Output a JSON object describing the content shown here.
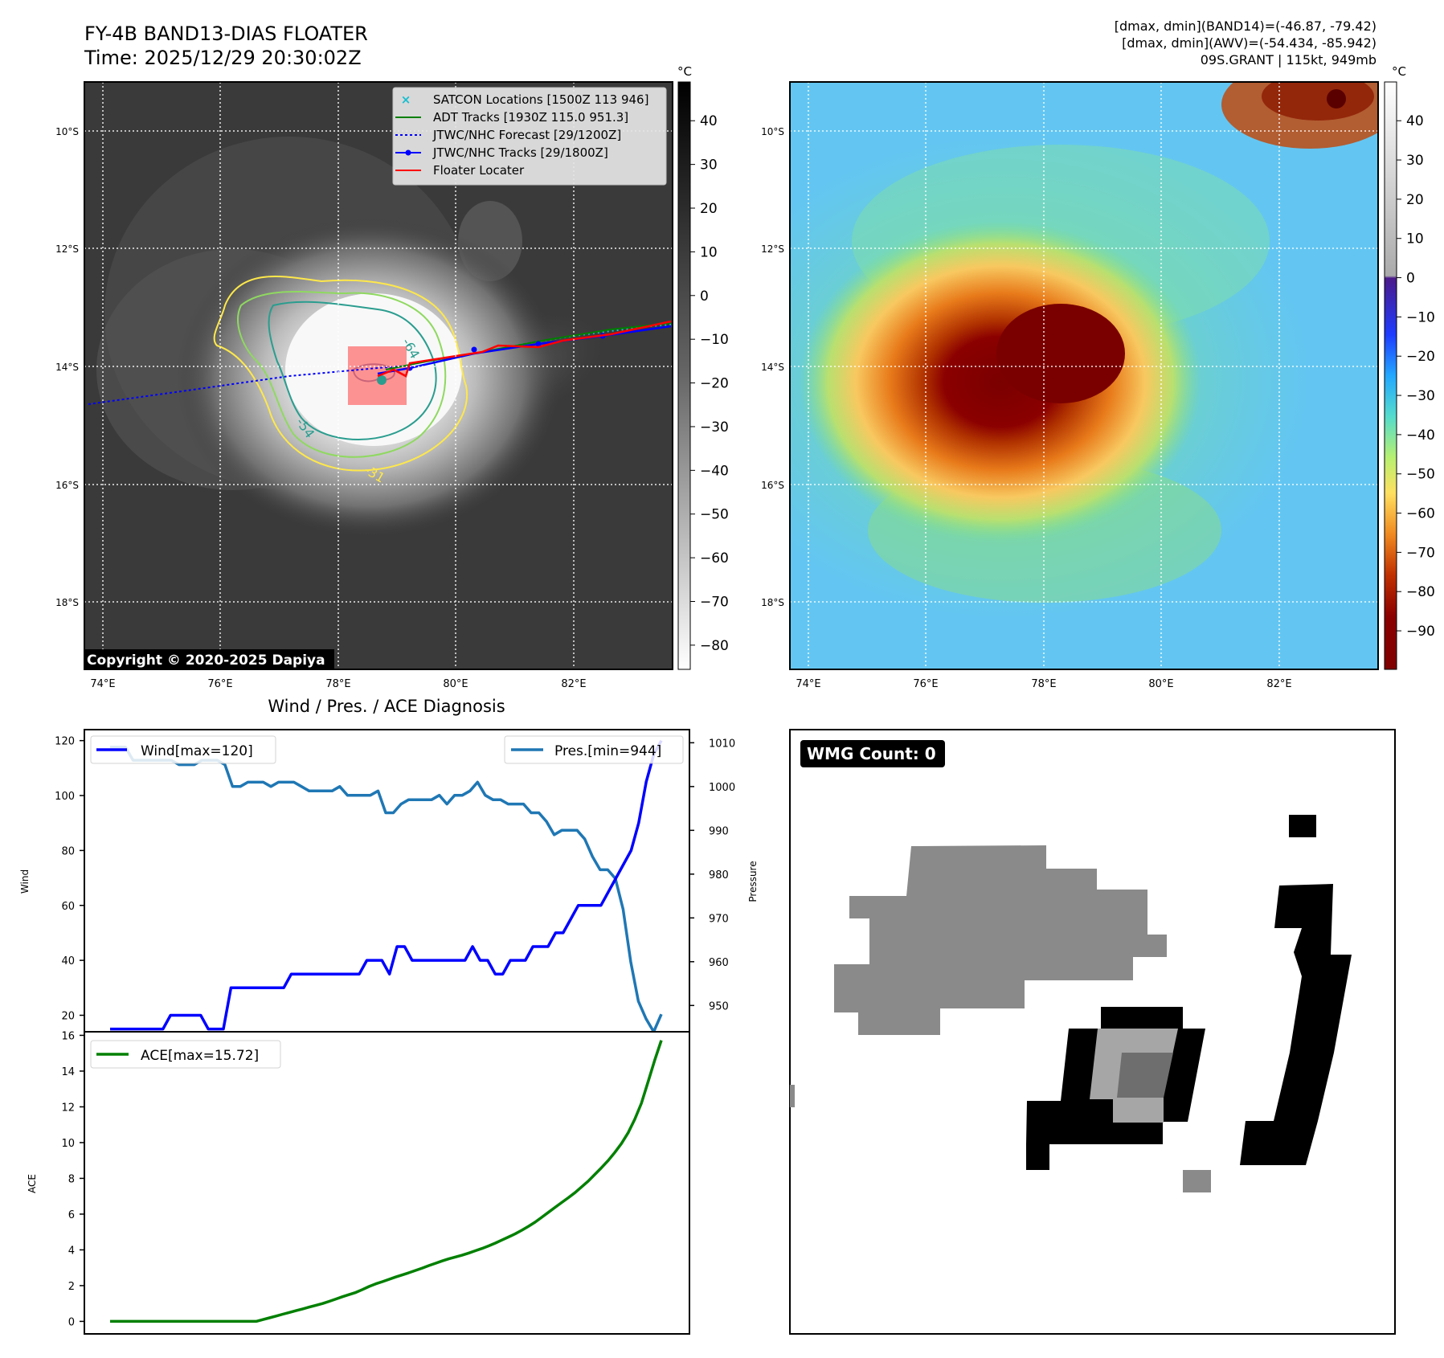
{
  "header": {
    "title_line1": "FY-4B BAND13-DIAS FLOATER",
    "title_line2": "Time: 2025/12/29 20:30:02Z",
    "right_line1": "[dmax, dmin](BAND14)=(-46.87, -79.42)",
    "right_line2": "[dmax, dmin](AWV)=(-54.434, -85.942)",
    "right_line3": "09S.GRANT | 115kt, 949mb"
  },
  "copyright": "Copyright © 2020-2025 Dapiya",
  "map_axes": {
    "lat_ticks": [
      "10°S",
      "12°S",
      "14°S",
      "16°S",
      "18°S"
    ],
    "lon_ticks": [
      "74°E",
      "76°E",
      "78°E",
      "80°E",
      "82°E"
    ]
  },
  "legend": {
    "satcon": "SATCON Locations [1500Z 113 946]",
    "adt": "ADT Tracks [1930Z 115.0 951.3]",
    "jtwc_forecast": "JTWC/NHC Forecast [29/1200Z]",
    "jtwc_tracks": "JTWC/NHC Tracks [29/1800Z]",
    "floater": "Floater Locater"
  },
  "contour_labels": [
    "-64",
    "-54",
    "-31"
  ],
  "colorbar_gray": {
    "unit": "°C",
    "ticks": [
      "40",
      "30",
      "20",
      "10",
      "0",
      "−10",
      "−20",
      "−30",
      "−40",
      "−50",
      "−60",
      "−70",
      "−80"
    ]
  },
  "colorbar_color": {
    "unit": "°C",
    "ticks": [
      "40",
      "30",
      "20",
      "10",
      "0",
      "−10",
      "−20",
      "−30",
      "−40",
      "−50",
      "−60",
      "−70",
      "−80",
      "−90"
    ]
  },
  "wmg": {
    "label": "WMG Count: 0"
  },
  "colors": {
    "wind": "#0000ff",
    "pressure": "#1f77b4",
    "ace": "#008000",
    "floater": "#ff0000",
    "satcon": "#17becf",
    "adt": "#008000"
  },
  "chart_data": [
    {
      "type": "line",
      "title": "Wind / Pres. / ACE Diagnosis",
      "ylabel": "Wind",
      "ylim": [
        14,
        124
      ],
      "yticks": [
        20,
        40,
        60,
        80,
        100,
        120
      ],
      "legend": "Wind[max=120]",
      "series": [
        {
          "name": "Wind",
          "values": [
            15,
            15,
            15,
            15,
            15,
            15,
            15,
            15,
            20,
            20,
            20,
            20,
            20,
            15,
            15,
            15,
            30,
            30,
            30,
            30,
            30,
            30,
            30,
            30,
            35,
            35,
            35,
            35,
            35,
            35,
            35,
            35,
            35,
            35,
            40,
            40,
            40,
            35,
            45,
            45,
            40,
            40,
            40,
            40,
            40,
            40,
            40,
            40,
            45,
            40,
            40,
            35,
            35,
            40,
            40,
            40,
            45,
            45,
            45,
            50,
            50,
            55,
            60,
            60,
            60,
            60,
            65,
            70,
            75,
            80,
            90,
            105,
            115,
            120
          ]
        }
      ]
    },
    {
      "type": "line",
      "ylabel": "Pressure",
      "ylim": [
        944,
        1013
      ],
      "yticks": [
        950,
        960,
        970,
        980,
        990,
        1000,
        1010
      ],
      "legend": "Pres.[min=944]",
      "series": [
        {
          "name": "Pres.",
          "values": [
            1009,
            1009,
            1009,
            1006,
            1006,
            1006,
            1006,
            1006,
            1006,
            1005,
            1005,
            1005,
            1006,
            1006,
            1006,
            1005,
            1000,
            1000,
            1001,
            1001,
            1001,
            1000,
            1001,
            1001,
            1001,
            1000,
            999,
            999,
            999,
            999,
            1000,
            998,
            998,
            998,
            998,
            999,
            994,
            994,
            996,
            997,
            997,
            997,
            997,
            998,
            996,
            998,
            998,
            999,
            1001,
            998,
            997,
            997,
            996,
            996,
            996,
            994,
            994,
            992,
            989,
            990,
            990,
            990,
            988,
            984,
            981,
            981,
            979,
            972,
            960,
            951,
            947,
            944,
            948
          ]
        }
      ]
    },
    {
      "type": "line",
      "ylabel": "ACE",
      "ylim": [
        -0.7,
        16.2
      ],
      "yticks": [
        0,
        2,
        4,
        6,
        8,
        10,
        12,
        14,
        16
      ],
      "legend": "ACE[max=15.72]",
      "series": [
        {
          "name": "ACE",
          "values": [
            0,
            0,
            0,
            0,
            0,
            0,
            0,
            0,
            0,
            0,
            0,
            0,
            0,
            0,
            0,
            0,
            0,
            0,
            0,
            0,
            0,
            0,
            0,
            0.1,
            0.2,
            0.3,
            0.4,
            0.5,
            0.6,
            0.7,
            0.8,
            0.9,
            1.0,
            1.12,
            1.25,
            1.38,
            1.5,
            1.62,
            1.78,
            1.95,
            2.1,
            2.22,
            2.35,
            2.48,
            2.6,
            2.72,
            2.85,
            2.98,
            3.12,
            3.25,
            3.38,
            3.5,
            3.6,
            3.7,
            3.82,
            3.95,
            4.08,
            4.22,
            4.38,
            4.55,
            4.72,
            4.9,
            5.1,
            5.32,
            5.55,
            5.82,
            6.1,
            6.38,
            6.65,
            6.92,
            7.2,
            7.52,
            7.85,
            8.22,
            8.6,
            9.0,
            9.45,
            9.95,
            10.55,
            11.3,
            12.2,
            13.4,
            14.6,
            15.72
          ]
        }
      ]
    }
  ]
}
